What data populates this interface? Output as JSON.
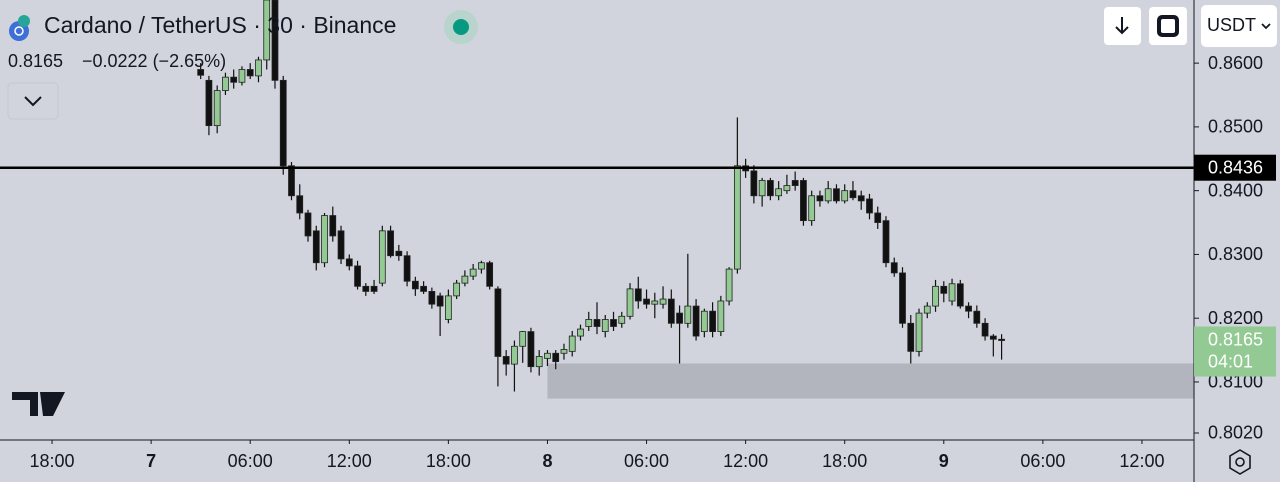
{
  "chart_data": {
    "type": "candlestick",
    "title": "Cardano / TetherUS · 30 · Binance",
    "header_price": "0.8165",
    "header_change": "−0.0222 (−2.65%)",
    "currency": "USDT",
    "up_color": "#93c993",
    "down_color": "#111111",
    "xlim": [
      -3.1515,
      69.1515
    ],
    "ylim": [
      0.8009,
      0.8699
    ],
    "grid": false,
    "xticks": [
      {
        "value": 0,
        "label": "18:00"
      },
      {
        "value": 6,
        "label": "7"
      },
      {
        "value": 12,
        "label": "06:00"
      },
      {
        "value": 18,
        "label": "12:00"
      },
      {
        "value": 24,
        "label": "18:00"
      },
      {
        "value": 30,
        "label": "8"
      },
      {
        "value": 36,
        "label": "06:00"
      },
      {
        "value": 42,
        "label": "12:00"
      },
      {
        "value": 48,
        "label": "18:00"
      },
      {
        "value": 54,
        "label": "9"
      },
      {
        "value": 60,
        "label": "06:00"
      },
      {
        "value": 66,
        "label": "12:00"
      }
    ],
    "yticks": [
      {
        "value": 0.86,
        "label": "0.8600"
      },
      {
        "value": 0.85,
        "label": "0.8500"
      },
      {
        "value": 0.84,
        "label": "0.8400"
      },
      {
        "value": 0.83,
        "label": "0.8300"
      },
      {
        "value": 0.82,
        "label": "0.8200"
      },
      {
        "value": 0.81,
        "label": "0.8100"
      },
      {
        "value": 0.802,
        "label": "0.8020"
      }
    ],
    "price_line": 0.8436,
    "current_price": 0.8165,
    "countdown": "04:01",
    "zone": {
      "x_start": 30,
      "low": 0.8074,
      "high": 0.8129
    },
    "x": [
      9,
      9.5,
      10,
      10.5,
      11,
      11.5,
      12,
      12.5,
      13,
      13.5,
      14,
      14.5,
      15,
      15.5,
      16,
      16.5,
      17,
      17.5,
      18,
      18.5,
      19,
      19.5,
      20,
      20.5,
      21,
      21.5,
      22,
      22.5,
      23,
      23.5,
      24,
      24.5,
      25,
      25.5,
      26,
      26.5,
      27,
      27.5,
      28,
      28.5,
      29,
      29.5,
      30,
      30.5,
      31,
      31.5,
      32,
      32.5,
      33,
      33.5,
      34,
      34.5,
      35,
      35.5,
      36,
      36.5,
      37,
      37.5,
      38,
      38.5,
      39,
      39.5,
      40,
      40.5,
      41,
      41.5,
      42,
      42.5,
      43,
      43.5,
      44,
      44.5,
      45,
      45.5,
      46,
      46.5,
      47,
      47.5,
      48,
      48.5,
      49,
      49.5,
      50,
      50.5,
      51,
      51.5,
      52,
      52.5,
      53,
      53.5,
      54,
      54.5,
      55,
      55.5,
      56,
      56.5,
      57,
      57.5
    ],
    "ohlc": [
      [
        0.859,
        0.86,
        0.8575,
        0.8581
      ],
      [
        0.8573,
        0.858,
        0.8487,
        0.8502
      ],
      [
        0.8502,
        0.8565,
        0.849,
        0.8557
      ],
      [
        0.8557,
        0.8585,
        0.855,
        0.8578
      ],
      [
        0.8578,
        0.859,
        0.856,
        0.857
      ],
      [
        0.857,
        0.8595,
        0.8565,
        0.859
      ],
      [
        0.859,
        0.86,
        0.8575,
        0.858
      ],
      [
        0.858,
        0.861,
        0.857,
        0.8605
      ],
      [
        0.8605,
        0.8699,
        0.859,
        0.8699
      ],
      [
        0.8699,
        0.8699,
        0.856,
        0.8573
      ],
      [
        0.8573,
        0.858,
        0.8425,
        0.8439
      ],
      [
        0.8439,
        0.8445,
        0.8385,
        0.8392
      ],
      [
        0.8392,
        0.841,
        0.8355,
        0.8365
      ],
      [
        0.8365,
        0.837,
        0.832,
        0.8329
      ],
      [
        0.8337,
        0.8345,
        0.8275,
        0.8287
      ],
      [
        0.8287,
        0.8365,
        0.828,
        0.8361
      ],
      [
        0.8361,
        0.8375,
        0.832,
        0.8329
      ],
      [
        0.8337,
        0.8345,
        0.8285,
        0.8293
      ],
      [
        0.8293,
        0.83,
        0.8275,
        0.8282
      ],
      [
        0.8282,
        0.829,
        0.8245,
        0.825
      ],
      [
        0.825,
        0.8255,
        0.8235,
        0.8242
      ],
      [
        0.825,
        0.826,
        0.8238,
        0.8242
      ],
      [
        0.8255,
        0.8345,
        0.825,
        0.8337
      ],
      [
        0.8337,
        0.8345,
        0.8295,
        0.8298
      ],
      [
        0.8305,
        0.8315,
        0.829,
        0.8298
      ],
      [
        0.8298,
        0.8305,
        0.825,
        0.8258
      ],
      [
        0.8258,
        0.8265,
        0.8235,
        0.8246
      ],
      [
        0.825,
        0.8258,
        0.8238,
        0.8242
      ],
      [
        0.8242,
        0.8248,
        0.8215,
        0.8222
      ],
      [
        0.8235,
        0.824,
        0.8172,
        0.8219
      ],
      [
        0.8198,
        0.8245,
        0.8192,
        0.8235
      ],
      [
        0.8235,
        0.826,
        0.823,
        0.8255
      ],
      [
        0.8255,
        0.8275,
        0.825,
        0.8266
      ],
      [
        0.8266,
        0.8285,
        0.826,
        0.8277
      ],
      [
        0.8277,
        0.829,
        0.827,
        0.8287
      ],
      [
        0.8287,
        0.829,
        0.8245,
        0.825
      ],
      [
        0.8246,
        0.825,
        0.8093,
        0.814
      ],
      [
        0.814,
        0.815,
        0.811,
        0.8128
      ],
      [
        0.8128,
        0.8165,
        0.8085,
        0.8156
      ],
      [
        0.8156,
        0.818,
        0.813,
        0.8179
      ],
      [
        0.8179,
        0.8185,
        0.8115,
        0.8124
      ],
      [
        0.8124,
        0.815,
        0.811,
        0.814
      ],
      [
        0.8137,
        0.815,
        0.8125,
        0.8145
      ],
      [
        0.8145,
        0.815,
        0.812,
        0.8132
      ],
      [
        0.8145,
        0.816,
        0.8135,
        0.8151
      ],
      [
        0.8148,
        0.818,
        0.814,
        0.8172
      ],
      [
        0.8172,
        0.819,
        0.8165,
        0.8183
      ],
      [
        0.8187,
        0.821,
        0.818,
        0.8198
      ],
      [
        0.8198,
        0.8225,
        0.8175,
        0.8187
      ],
      [
        0.8179,
        0.8205,
        0.817,
        0.8198
      ],
      [
        0.8198,
        0.821,
        0.818,
        0.8187
      ],
      [
        0.8192,
        0.821,
        0.8185,
        0.8203
      ],
      [
        0.8203,
        0.8255,
        0.8198,
        0.8246
      ],
      [
        0.8246,
        0.8265,
        0.8215,
        0.8227
      ],
      [
        0.823,
        0.8245,
        0.8215,
        0.8222
      ],
      [
        0.8222,
        0.824,
        0.82,
        0.8227
      ],
      [
        0.8222,
        0.825,
        0.8215,
        0.823
      ],
      [
        0.823,
        0.8245,
        0.8185,
        0.8192
      ],
      [
        0.8208,
        0.822,
        0.8129,
        0.8192
      ],
      [
        0.8192,
        0.8301,
        0.8185,
        0.8219
      ],
      [
        0.8219,
        0.823,
        0.8165,
        0.8172
      ],
      [
        0.8179,
        0.8215,
        0.817,
        0.8211
      ],
      [
        0.8211,
        0.8225,
        0.817,
        0.8179
      ],
      [
        0.8179,
        0.8235,
        0.8172,
        0.8227
      ],
      [
        0.8227,
        0.828,
        0.822,
        0.8277
      ],
      [
        0.8277,
        0.8515,
        0.827,
        0.8439
      ],
      [
        0.8439,
        0.845,
        0.842,
        0.8431
      ],
      [
        0.8431,
        0.844,
        0.838,
        0.8392
      ],
      [
        0.8392,
        0.842,
        0.8375,
        0.8416
      ],
      [
        0.8416,
        0.842,
        0.8385,
        0.8392
      ],
      [
        0.8392,
        0.8415,
        0.8385,
        0.8403
      ],
      [
        0.84,
        0.8425,
        0.8395,
        0.8408
      ],
      [
        0.8416,
        0.843,
        0.84,
        0.8408
      ],
      [
        0.8416,
        0.842,
        0.8345,
        0.8353
      ],
      [
        0.8353,
        0.84,
        0.8345,
        0.8392
      ],
      [
        0.8392,
        0.84,
        0.8375,
        0.8384
      ],
      [
        0.8384,
        0.8415,
        0.838,
        0.8403
      ],
      [
        0.8403,
        0.841,
        0.838,
        0.8384
      ],
      [
        0.8384,
        0.841,
        0.838,
        0.84
      ],
      [
        0.84,
        0.8415,
        0.8385,
        0.8389
      ],
      [
        0.8392,
        0.84,
        0.837,
        0.8384
      ],
      [
        0.8387,
        0.8395,
        0.8355,
        0.8365
      ],
      [
        0.8365,
        0.8375,
        0.834,
        0.835
      ],
      [
        0.8353,
        0.836,
        0.828,
        0.8287
      ],
      [
        0.8287,
        0.8295,
        0.8265,
        0.8271
      ],
      [
        0.8271,
        0.828,
        0.8185,
        0.8192
      ],
      [
        0.8192,
        0.8205,
        0.8129,
        0.8148
      ],
      [
        0.8148,
        0.8215,
        0.814,
        0.8208
      ],
      [
        0.8208,
        0.8225,
        0.82,
        0.8219
      ],
      [
        0.8219,
        0.826,
        0.821,
        0.825
      ],
      [
        0.825,
        0.8258,
        0.8225,
        0.8239
      ],
      [
        0.8227,
        0.8262,
        0.822,
        0.8254
      ],
      [
        0.8254,
        0.826,
        0.8215,
        0.8219
      ],
      [
        0.8219,
        0.8225,
        0.82,
        0.8211
      ],
      [
        0.8211,
        0.822,
        0.8185,
        0.8192
      ],
      [
        0.8192,
        0.82,
        0.8165,
        0.8172
      ],
      [
        0.8172,
        0.8175,
        0.814,
        0.8167
      ],
      [
        0.8167,
        0.8175,
        0.8135,
        0.8165
      ]
    ]
  }
}
